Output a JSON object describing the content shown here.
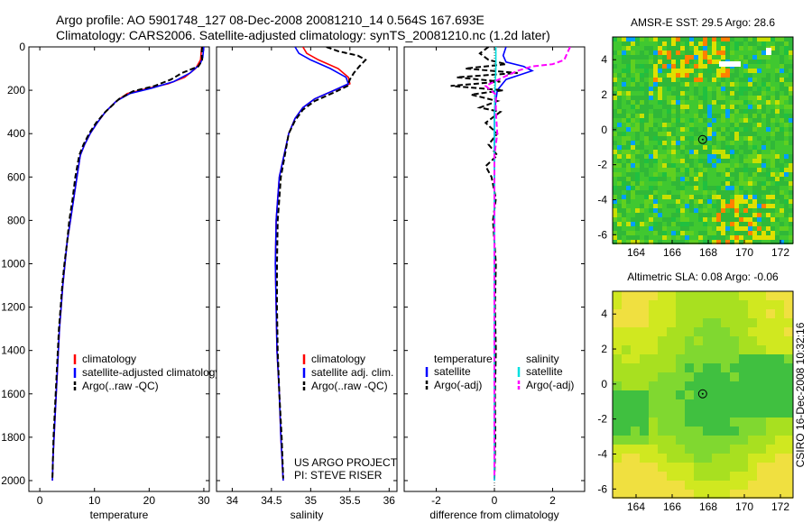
{
  "header": {
    "line1": "Argo profile: AO 5901748_127 08-Dec-2008 20081210_14 0.564S 167.693E",
    "line2": "Climatology: CARS2006. Satellite-adjusted climatology: synTS_20081210.nc (1.2d later)"
  },
  "side_stamp": "CSIRO 16-Dec-2008 10:32:16",
  "colors": {
    "climatology": "#ff0000",
    "satellite": "#0000ff",
    "argo": "#000000",
    "sat_salinity": "#00e0e0",
    "argo_salinity": "#ff00ff"
  },
  "chart_data": [
    {
      "id": "temperature",
      "type": "line",
      "xlabel": "temperature",
      "xlim": [
        -2,
        31
      ],
      "ylim": [
        0,
        2050
      ],
      "y_inverted": true,
      "xticks": [
        0,
        10,
        20,
        30
      ],
      "yticks": [
        0,
        200,
        400,
        600,
        800,
        1000,
        1200,
        1400,
        1600,
        1800,
        2000
      ],
      "legend": [
        "climatology",
        "satellite-adjusted climatology",
        "Argo(..raw -QC)"
      ],
      "series": [
        {
          "name": "climatology",
          "color": "#ff0000",
          "style": "solid",
          "points": [
            [
              29.6,
              0
            ],
            [
              29.4,
              60
            ],
            [
              28.5,
              100
            ],
            [
              26.5,
              140
            ],
            [
              23.5,
              170
            ],
            [
              20,
              190
            ],
            [
              16,
              215
            ],
            [
              14,
              250
            ],
            [
              12,
              300
            ],
            [
              10.5,
              350
            ],
            [
              9.2,
              400
            ],
            [
              8.2,
              450
            ],
            [
              7.4,
              500
            ],
            [
              6.8,
              600
            ],
            [
              6.2,
              700
            ],
            [
              5.6,
              800
            ],
            [
              5,
              900
            ],
            [
              4.6,
              1000
            ],
            [
              4.2,
              1100
            ],
            [
              3.9,
              1200
            ],
            [
              3.6,
              1300
            ],
            [
              3.4,
              1400
            ],
            [
              3.2,
              1500
            ],
            [
              3,
              1600
            ],
            [
              2.8,
              1700
            ],
            [
              2.6,
              1800
            ],
            [
              2.4,
              1900
            ],
            [
              2.3,
              2000
            ]
          ]
        },
        {
          "name": "satellite-adjusted climatology",
          "color": "#0000ff",
          "style": "solid",
          "points": [
            [
              30,
              0
            ],
            [
              29.8,
              50
            ],
            [
              29.3,
              80
            ],
            [
              27.5,
              120
            ],
            [
              24.5,
              160
            ],
            [
              20.5,
              190
            ],
            [
              16.5,
              215
            ],
            [
              14,
              250
            ],
            [
              12,
              300
            ],
            [
              10.5,
              350
            ],
            [
              9.2,
              400
            ],
            [
              8.2,
              450
            ],
            [
              7.4,
              500
            ],
            [
              6.8,
              600
            ],
            [
              6.2,
              700
            ],
            [
              5.6,
              800
            ],
            [
              5,
              900
            ],
            [
              4.6,
              1000
            ],
            [
              4.2,
              1100
            ],
            [
              3.9,
              1200
            ],
            [
              3.6,
              1300
            ],
            [
              3.4,
              1400
            ],
            [
              3.2,
              1500
            ],
            [
              3,
              1600
            ],
            [
              2.8,
              1700
            ],
            [
              2.6,
              1800
            ],
            [
              2.4,
              1900
            ],
            [
              2.3,
              2000
            ]
          ]
        },
        {
          "name": "Argo(..raw -QC)",
          "color": "#000000",
          "style": "dashed",
          "points": [
            [
              29.7,
              0
            ],
            [
              29.6,
              30
            ],
            [
              29.7,
              60
            ],
            [
              29,
              90
            ],
            [
              26,
              120
            ],
            [
              24,
              150
            ],
            [
              21,
              180
            ],
            [
              17,
              205
            ],
            [
              14.5,
              240
            ],
            [
              12,
              300
            ],
            [
              10.3,
              350
            ],
            [
              9,
              400
            ],
            [
              8,
              450
            ],
            [
              7.2,
              500
            ],
            [
              6.5,
              600
            ],
            [
              6,
              700
            ],
            [
              5.4,
              800
            ],
            [
              5,
              900
            ],
            [
              4.5,
              1000
            ],
            [
              4.1,
              1100
            ],
            [
              3.8,
              1200
            ],
            [
              3.5,
              1300
            ],
            [
              3.3,
              1400
            ],
            [
              3.1,
              1500
            ],
            [
              2.9,
              1600
            ],
            [
              2.7,
              1700
            ],
            [
              2.5,
              1800
            ],
            [
              2.4,
              1900
            ],
            [
              2.3,
              1990
            ]
          ]
        }
      ]
    },
    {
      "id": "salinity",
      "type": "line",
      "xlabel": "salinity",
      "xlim": [
        33.8,
        36.1
      ],
      "ylim": [
        0,
        2050
      ],
      "y_inverted": true,
      "xticks": [
        34,
        34.5,
        35,
        35.5,
        36
      ],
      "yticks": [
        0,
        200,
        400,
        600,
        800,
        1000,
        1200,
        1400,
        1600,
        1800,
        2000
      ],
      "legend": [
        "climatology",
        "satellite adj. clim.",
        "Argo(..raw -QC)"
      ],
      "annotation": [
        "US ARGO PROJECT",
        "PI: STEVE RISER"
      ],
      "series": [
        {
          "name": "climatology",
          "color": "#ff0000",
          "style": "solid",
          "points": [
            [
              34.9,
              0
            ],
            [
              34.95,
              30
            ],
            [
              35.1,
              60
            ],
            [
              35.35,
              100
            ],
            [
              35.48,
              140
            ],
            [
              35.5,
              170
            ],
            [
              35.3,
              200
            ],
            [
              35.05,
              240
            ],
            [
              34.9,
              280
            ],
            [
              34.8,
              330
            ],
            [
              34.72,
              400
            ],
            [
              34.66,
              500
            ],
            [
              34.6,
              600
            ],
            [
              34.58,
              700
            ],
            [
              34.56,
              800
            ],
            [
              34.55,
              1000
            ],
            [
              34.56,
              1200
            ],
            [
              34.57,
              1400
            ],
            [
              34.6,
              1600
            ],
            [
              34.62,
              1800
            ],
            [
              34.65,
              2000
            ]
          ]
        },
        {
          "name": "satellite adj. clim.",
          "color": "#0000ff",
          "style": "solid",
          "points": [
            [
              34.8,
              0
            ],
            [
              34.85,
              30
            ],
            [
              35,
              60
            ],
            [
              35.25,
              100
            ],
            [
              35.45,
              140
            ],
            [
              35.48,
              170
            ],
            [
              35.3,
              200
            ],
            [
              35.05,
              240
            ],
            [
              34.9,
              280
            ],
            [
              34.8,
              330
            ],
            [
              34.72,
              400
            ],
            [
              34.66,
              500
            ],
            [
              34.6,
              600
            ],
            [
              34.58,
              700
            ],
            [
              34.56,
              800
            ],
            [
              34.55,
              1000
            ],
            [
              34.56,
              1200
            ],
            [
              34.57,
              1400
            ],
            [
              34.6,
              1600
            ],
            [
              34.62,
              1800
            ],
            [
              34.65,
              2000
            ]
          ]
        },
        {
          "name": "Argo(..raw -QC)",
          "color": "#000000",
          "style": "dashed",
          "points": [
            [
              35.2,
              0
            ],
            [
              35.35,
              20
            ],
            [
              35.6,
              40
            ],
            [
              35.7,
              60
            ],
            [
              35.62,
              90
            ],
            [
              35.55,
              120
            ],
            [
              35.5,
              150
            ],
            [
              35.47,
              180
            ],
            [
              35.3,
              210
            ],
            [
              35.05,
              250
            ],
            [
              34.9,
              290
            ],
            [
              34.8,
              340
            ],
            [
              34.72,
              400
            ],
            [
              34.67,
              500
            ],
            [
              34.62,
              600
            ],
            [
              34.6,
              700
            ],
            [
              34.58,
              800
            ],
            [
              34.57,
              1000
            ],
            [
              34.57,
              1200
            ],
            [
              34.58,
              1400
            ],
            [
              34.6,
              1600
            ],
            [
              34.63,
              1800
            ],
            [
              34.65,
              1990
            ]
          ]
        }
      ]
    },
    {
      "id": "difference",
      "type": "line",
      "xlabel": "difference from climatology",
      "xlim": [
        -3.1,
        3.1
      ],
      "ylim": [
        0,
        2050
      ],
      "y_inverted": true,
      "xticks": [
        -2,
        0,
        2
      ],
      "yticks": [
        0,
        200,
        400,
        600,
        800,
        1000,
        1200,
        1400,
        1600,
        1800,
        2000
      ],
      "legend_columns": [
        {
          "title": "temperature",
          "entries": [
            "satellite",
            "Argo(-adj)"
          ]
        },
        {
          "title": "salinity",
          "entries": [
            "satellite",
            "Argo(-adj)"
          ]
        }
      ],
      "series": [
        {
          "name": "temperature satellite",
          "color": "#0000ff",
          "style": "solid",
          "points": [
            [
              0.4,
              0
            ],
            [
              0.3,
              40
            ],
            [
              0.4,
              70
            ],
            [
              1.0,
              90
            ],
            [
              1.3,
              110
            ],
            [
              0.4,
              150
            ],
            [
              0.1,
              200
            ],
            [
              0,
              300
            ],
            [
              0,
              400
            ],
            [
              0,
              600
            ],
            [
              0,
              800
            ],
            [
              0,
              1000
            ],
            [
              0,
              1400
            ],
            [
              0,
              2000
            ]
          ]
        },
        {
          "name": "temperature Argo(-adj)",
          "color": "#000000",
          "style": "dashed",
          "points": [
            [
              -0.2,
              0
            ],
            [
              -0.5,
              30
            ],
            [
              -0.2,
              60
            ],
            [
              0.4,
              80
            ],
            [
              -1.0,
              100
            ],
            [
              0.8,
              120
            ],
            [
              -1.3,
              140
            ],
            [
              0.2,
              160
            ],
            [
              -1.5,
              180
            ],
            [
              0.3,
              200
            ],
            [
              -0.8,
              220
            ],
            [
              0.1,
              250
            ],
            [
              -0.5,
              280
            ],
            [
              0.2,
              300
            ],
            [
              -0.3,
              350
            ],
            [
              0.1,
              400
            ],
            [
              -0.2,
              450
            ],
            [
              0.1,
              500
            ],
            [
              -0.3,
              550
            ],
            [
              -0.1,
              600
            ],
            [
              0.05,
              700
            ],
            [
              -0.05,
              800
            ],
            [
              0.05,
              1000
            ],
            [
              0.02,
              1200
            ],
            [
              0.05,
              1400
            ],
            [
              0.02,
              1600
            ],
            [
              0.03,
              1800
            ],
            [
              0,
              1990
            ]
          ]
        },
        {
          "name": "salinity satellite",
          "color": "#00e0e0",
          "style": "solid",
          "points": [
            [
              0.05,
              0
            ],
            [
              0.05,
              100
            ],
            [
              0.02,
              200
            ],
            [
              0,
              400
            ],
            [
              0,
              800
            ],
            [
              0,
              1200
            ],
            [
              0,
              1600
            ],
            [
              0,
              2000
            ]
          ]
        },
        {
          "name": "salinity Argo(-adj)",
          "color": "#ff00ff",
          "style": "dashed",
          "points": [
            [
              2.6,
              0
            ],
            [
              2.5,
              30
            ],
            [
              2.4,
              60
            ],
            [
              2.0,
              80
            ],
            [
              1.3,
              90
            ],
            [
              0.8,
              110
            ],
            [
              0.3,
              140
            ],
            [
              -0.3,
              180
            ],
            [
              0.05,
              220
            ],
            [
              0.05,
              300
            ],
            [
              0.1,
              400
            ],
            [
              0,
              500
            ],
            [
              0,
              800
            ],
            [
              0,
              1200
            ],
            [
              0,
              1600
            ],
            [
              0,
              1990
            ]
          ]
        }
      ]
    },
    {
      "id": "sst_map",
      "type": "heatmap",
      "title": "AMSR-E SST: 29.5 Argo: 28.6",
      "xlim": [
        162.7,
        172.7
      ],
      "ylim": [
        -6.5,
        5.3
      ],
      "xticks": [
        164,
        166,
        168,
        170,
        172
      ],
      "yticks": [
        -6,
        -4,
        -2,
        0,
        2,
        4
      ],
      "marker": [
        167.69,
        -0.56
      ]
    },
    {
      "id": "sla_map",
      "type": "heatmap",
      "title": "Altimetric SLA: 0.08 Argo: -0.06",
      "xlim": [
        162.7,
        172.7
      ],
      "ylim": [
        -6.5,
        5.3
      ],
      "xticks": [
        164,
        166,
        168,
        170,
        172
      ],
      "yticks": [
        -6,
        -4,
        -2,
        0,
        2,
        4
      ],
      "marker": [
        167.69,
        -0.56
      ]
    }
  ]
}
